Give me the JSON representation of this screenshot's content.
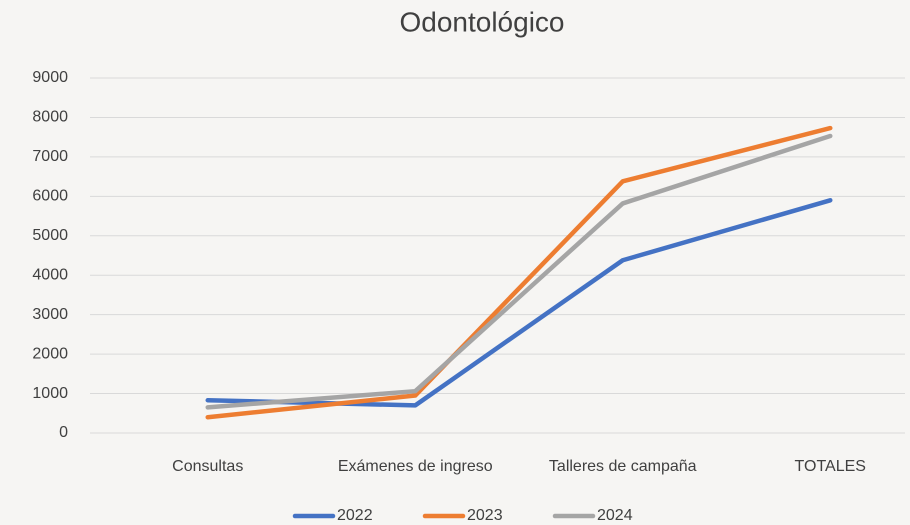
{
  "chart_data": {
    "type": "line",
    "title": "Odontológico",
    "categories": [
      "Consultas",
      "Exámenes de ingreso",
      "Talleres de campaña",
      "TOTALES"
    ],
    "series": [
      {
        "name": "2022",
        "color": "#4472c4",
        "values": [
          830,
          700,
          4380,
          5900
        ]
      },
      {
        "name": "2023",
        "color": "#ed7d31",
        "values": [
          400,
          950,
          6380,
          7730
        ]
      },
      {
        "name": "2024",
        "color": "#a5a5a5",
        "values": [
          650,
          1060,
          5820,
          7530
        ]
      }
    ],
    "ylim": [
      0,
      9000
    ],
    "yticks": [
      0,
      1000,
      2000,
      3000,
      4000,
      5000,
      6000,
      7000,
      8000,
      9000
    ],
    "grid": true,
    "legend": "bottom"
  }
}
